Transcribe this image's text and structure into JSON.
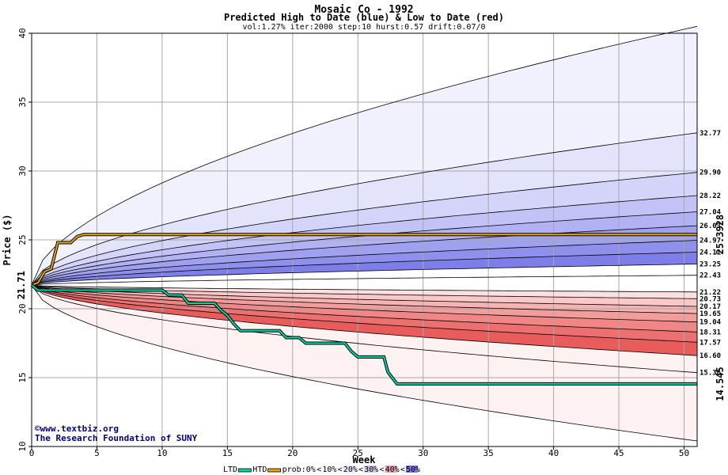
{
  "chart_data": {
    "type": "area",
    "title": "Mosaic Co - 1992",
    "subtitle": "Predicted High to Date (blue) &  Low to Date (red)",
    "params": "vol:1.27% iter:2000 step:10 hurst:0.57 drift:0.07/0",
    "xlabel": "Week",
    "ylabel": "Price ($)",
    "xlim": [
      0,
      51
    ],
    "ylim": [
      10,
      40
    ],
    "x_ticks": [
      "0",
      "5",
      "10",
      "15",
      "20",
      "25",
      "30",
      "35",
      "40",
      "45",
      "50"
    ],
    "y_ticks": [
      "10",
      "15",
      "20",
      "25",
      "30",
      "35",
      "40"
    ],
    "start_price": "21.71",
    "start_value": 21.71,
    "high_end_label": "25.3928",
    "high_end_value": 25.3928,
    "low_end_label": "14.545",
    "low_end_value": 14.545,
    "high_band_end_labels": [
      "32.77",
      "29.90",
      "28.22",
      "27.04",
      "26.03",
      "24.97",
      "24.11",
      "23.25",
      "22.43"
    ],
    "high_band_end_values": [
      32.77,
      29.9,
      28.22,
      27.04,
      26.03,
      24.97,
      24.11,
      23.25,
      22.43
    ],
    "low_band_end_labels": [
      "21.22",
      "20.73",
      "20.17",
      "19.65",
      "19.04",
      "18.31",
      "17.57",
      "16.60",
      "15.36"
    ],
    "low_band_end_values": [
      21.22,
      20.73,
      20.17,
      19.65,
      19.04,
      18.31,
      17.57,
      16.6,
      15.36
    ],
    "high_envelope_end": 40.5,
    "low_envelope_end": 10.4,
    "grid": true,
    "htd_path": [
      [
        0,
        21.71
      ],
      [
        0.5,
        21.9
      ],
      [
        1,
        22.7
      ],
      [
        1.5,
        22.9
      ],
      [
        2,
        24.8
      ],
      [
        3,
        24.8
      ],
      [
        3.5,
        25.25
      ],
      [
        4,
        25.39
      ],
      [
        51,
        25.39
      ]
    ],
    "ltd_path": [
      [
        0,
        21.71
      ],
      [
        0.5,
        21.35
      ],
      [
        10,
        21.35
      ],
      [
        10.5,
        21.0
      ],
      [
        11.5,
        21.0
      ],
      [
        12,
        20.4
      ],
      [
        14,
        20.4
      ],
      [
        14.5,
        19.9
      ],
      [
        15,
        19.5
      ],
      [
        15.5,
        18.9
      ],
      [
        16,
        18.4
      ],
      [
        19,
        18.4
      ],
      [
        19.5,
        17.9
      ],
      [
        20.5,
        17.9
      ],
      [
        21,
        17.5
      ],
      [
        24,
        17.5
      ],
      [
        24.5,
        16.9
      ],
      [
        25,
        16.5
      ],
      [
        27,
        16.5
      ],
      [
        27.3,
        15.4
      ],
      [
        28,
        14.545
      ],
      [
        51,
        14.545
      ]
    ],
    "colors": {
      "blue_bands": [
        "#f1f1fd",
        "#e3e3fc",
        "#d4d4fa",
        "#c2c2f7",
        "#b1b1f3",
        "#a0a0f0",
        "#8f8fec",
        "#7e7ee9"
      ],
      "red_bands": [
        "#fdf1f1",
        "#fcdfdf",
        "#fac8c8",
        "#f7b2b2",
        "#f39c9c",
        "#f08686",
        "#ec7070",
        "#e85c5c"
      ],
      "htd": "#e8a800",
      "ltd": "#00d8a8",
      "start_label": "#006400",
      "high_label": "#b08800",
      "low_label": "#008060"
    },
    "legend": {
      "ltd": "LTD",
      "htd": "HTD",
      "prob": "prob:0%",
      "lt": "<",
      "items": [
        "10%",
        "20%",
        "30%",
        "40%",
        "50%"
      ],
      "swatches": [
        "#f8f8f8",
        "#e8e8f8",
        "#d8c8e8",
        "#e8a0b0",
        "#7878e8"
      ]
    }
  },
  "credits": {
    "url": "©www.textbiz.org",
    "org": "The Research Foundation of SUNY"
  }
}
